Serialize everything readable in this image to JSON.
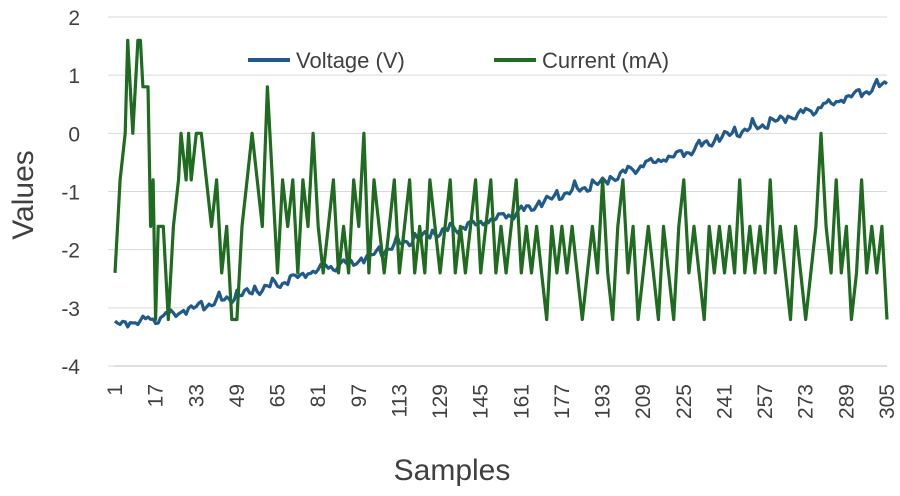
{
  "chart_data": {
    "type": "line",
    "title": "",
    "xlabel": "Samples",
    "ylabel": "Values",
    "ylim": [
      -4,
      2
    ],
    "yticks": [
      2,
      1,
      0,
      -1,
      -2,
      -3,
      -4
    ],
    "x_range": [
      1,
      305
    ],
    "categories": [
      "1",
      "17",
      "33",
      "49",
      "65",
      "81",
      "97",
      "113",
      "129",
      "145",
      "161",
      "177",
      "193",
      "209",
      "225",
      "241",
      "257",
      "273",
      "289",
      "305"
    ],
    "grid": true,
    "legend_position": "top",
    "series": [
      {
        "name": "Voltage (V)",
        "color": "#1F5A8A",
        "trend_points": [
          [
            1,
            -3.3
          ],
          [
            17,
            -3.2
          ],
          [
            33,
            -3.0
          ],
          [
            49,
            -2.8
          ],
          [
            65,
            -2.6
          ],
          [
            81,
            -2.35
          ],
          [
            97,
            -2.2
          ],
          [
            113,
            -1.9
          ],
          [
            129,
            -1.7
          ],
          [
            145,
            -1.55
          ],
          [
            161,
            -1.35
          ],
          [
            177,
            -1.05
          ],
          [
            193,
            -0.85
          ],
          [
            209,
            -0.55
          ],
          [
            225,
            -0.35
          ],
          [
            241,
            -0.05
          ],
          [
            257,
            0.15
          ],
          [
            273,
            0.35
          ],
          [
            289,
            0.6
          ],
          [
            305,
            0.85
          ]
        ]
      },
      {
        "name": "Current (mA)",
        "color": "#1F6B1F",
        "key_points": [
          [
            1,
            -2.4
          ],
          [
            3,
            -0.8
          ],
          [
            5,
            0.0
          ],
          [
            6,
            1.6
          ],
          [
            7,
            0.8
          ],
          [
            8,
            0.0
          ],
          [
            10,
            1.6
          ],
          [
            11,
            1.6
          ],
          [
            12,
            0.8
          ],
          [
            14,
            0.8
          ],
          [
            15,
            -1.6
          ],
          [
            16,
            -0.8
          ],
          [
            17,
            -3.2
          ],
          [
            18,
            -1.6
          ],
          [
            20,
            -1.6
          ],
          [
            22,
            -3.2
          ],
          [
            24,
            -1.6
          ],
          [
            26,
            -0.8
          ],
          [
            27,
            0.0
          ],
          [
            29,
            -0.8
          ],
          [
            30,
            0.0
          ],
          [
            31,
            -0.8
          ],
          [
            33,
            0.0
          ],
          [
            35,
            0.0
          ],
          [
            37,
            -0.8
          ],
          [
            39,
            -1.6
          ],
          [
            41,
            -0.8
          ],
          [
            43,
            -2.4
          ],
          [
            45,
            -1.6
          ],
          [
            47,
            -3.2
          ],
          [
            49,
            -3.2
          ],
          [
            51,
            -1.6
          ],
          [
            53,
            -0.8
          ],
          [
            55,
            0.0
          ],
          [
            57,
            -0.8
          ],
          [
            59,
            -1.6
          ],
          [
            61,
            0.8
          ],
          [
            63,
            -0.8
          ],
          [
            65,
            -2.4
          ],
          [
            67,
            -0.8
          ],
          [
            69,
            -1.6
          ],
          [
            71,
            -0.8
          ],
          [
            73,
            -2.4
          ],
          [
            75,
            -0.8
          ],
          [
            77,
            -1.6
          ],
          [
            79,
            0.0
          ],
          [
            81,
            -1.6
          ],
          [
            83,
            -2.4
          ],
          [
            85,
            -1.6
          ],
          [
            87,
            -0.8
          ],
          [
            89,
            -2.4
          ],
          [
            91,
            -1.6
          ],
          [
            93,
            -2.4
          ],
          [
            95,
            -0.8
          ],
          [
            97,
            -1.6
          ],
          [
            99,
            0.0
          ],
          [
            101,
            -2.4
          ],
          [
            103,
            -0.8
          ],
          [
            105,
            -1.6
          ],
          [
            107,
            -2.4
          ],
          [
            109,
            -1.6
          ],
          [
            111,
            -0.8
          ],
          [
            113,
            -2.4
          ],
          [
            115,
            -1.6
          ],
          [
            117,
            -0.8
          ],
          [
            119,
            -2.4
          ],
          [
            121,
            -1.6
          ],
          [
            123,
            -2.4
          ],
          [
            125,
            -0.8
          ],
          [
            127,
            -1.6
          ],
          [
            129,
            -2.4
          ],
          [
            131,
            -1.6
          ],
          [
            133,
            -0.8
          ],
          [
            135,
            -2.4
          ],
          [
            137,
            -1.6
          ],
          [
            139,
            -2.4
          ],
          [
            141,
            -1.6
          ],
          [
            143,
            -0.8
          ],
          [
            145,
            -2.4
          ],
          [
            147,
            -1.6
          ],
          [
            149,
            -0.8
          ],
          [
            151,
            -2.4
          ],
          [
            153,
            -1.6
          ],
          [
            155,
            -2.4
          ],
          [
            157,
            -1.6
          ],
          [
            159,
            -0.8
          ],
          [
            161,
            -2.4
          ],
          [
            163,
            -1.6
          ],
          [
            165,
            -2.4
          ],
          [
            167,
            -1.6
          ],
          [
            169,
            -2.4
          ],
          [
            171,
            -3.2
          ],
          [
            173,
            -1.6
          ],
          [
            175,
            -2.4
          ],
          [
            177,
            -1.6
          ],
          [
            179,
            -2.4
          ],
          [
            181,
            -1.6
          ],
          [
            183,
            -2.4
          ],
          [
            185,
            -3.2
          ],
          [
            187,
            -2.4
          ],
          [
            189,
            -1.6
          ],
          [
            191,
            -2.4
          ],
          [
            193,
            -0.8
          ],
          [
            195,
            -2.4
          ],
          [
            197,
            -3.2
          ],
          [
            199,
            -1.6
          ],
          [
            201,
            -0.8
          ],
          [
            203,
            -2.4
          ],
          [
            205,
            -1.6
          ],
          [
            207,
            -3.2
          ],
          [
            209,
            -2.4
          ],
          [
            211,
            -1.6
          ],
          [
            213,
            -2.4
          ],
          [
            215,
            -3.2
          ],
          [
            217,
            -1.6
          ],
          [
            219,
            -2.4
          ],
          [
            221,
            -3.2
          ],
          [
            223,
            -1.6
          ],
          [
            225,
            -0.8
          ],
          [
            227,
            -2.4
          ],
          [
            229,
            -1.6
          ],
          [
            231,
            -2.4
          ],
          [
            233,
            -3.2
          ],
          [
            235,
            -1.6
          ],
          [
            237,
            -2.4
          ],
          [
            239,
            -1.6
          ],
          [
            241,
            -2.4
          ],
          [
            243,
            -1.6
          ],
          [
            245,
            -2.4
          ],
          [
            247,
            -0.8
          ],
          [
            249,
            -2.4
          ],
          [
            251,
            -1.6
          ],
          [
            253,
            -2.4
          ],
          [
            255,
            -1.6
          ],
          [
            257,
            -2.4
          ],
          [
            259,
            -0.8
          ],
          [
            261,
            -2.4
          ],
          [
            263,
            -1.6
          ],
          [
            265,
            -2.4
          ],
          [
            267,
            -3.2
          ],
          [
            269,
            -1.6
          ],
          [
            271,
            -2.4
          ],
          [
            273,
            -3.2
          ],
          [
            275,
            -2.4
          ],
          [
            277,
            -1.6
          ],
          [
            279,
            0.0
          ],
          [
            281,
            -1.6
          ],
          [
            283,
            -2.4
          ],
          [
            285,
            -0.8
          ],
          [
            287,
            -2.4
          ],
          [
            289,
            -1.6
          ],
          [
            291,
            -3.2
          ],
          [
            293,
            -2.4
          ],
          [
            295,
            -0.8
          ],
          [
            297,
            -2.4
          ],
          [
            299,
            -1.6
          ],
          [
            301,
            -2.4
          ],
          [
            303,
            -1.6
          ],
          [
            305,
            -3.2
          ]
        ]
      }
    ]
  }
}
